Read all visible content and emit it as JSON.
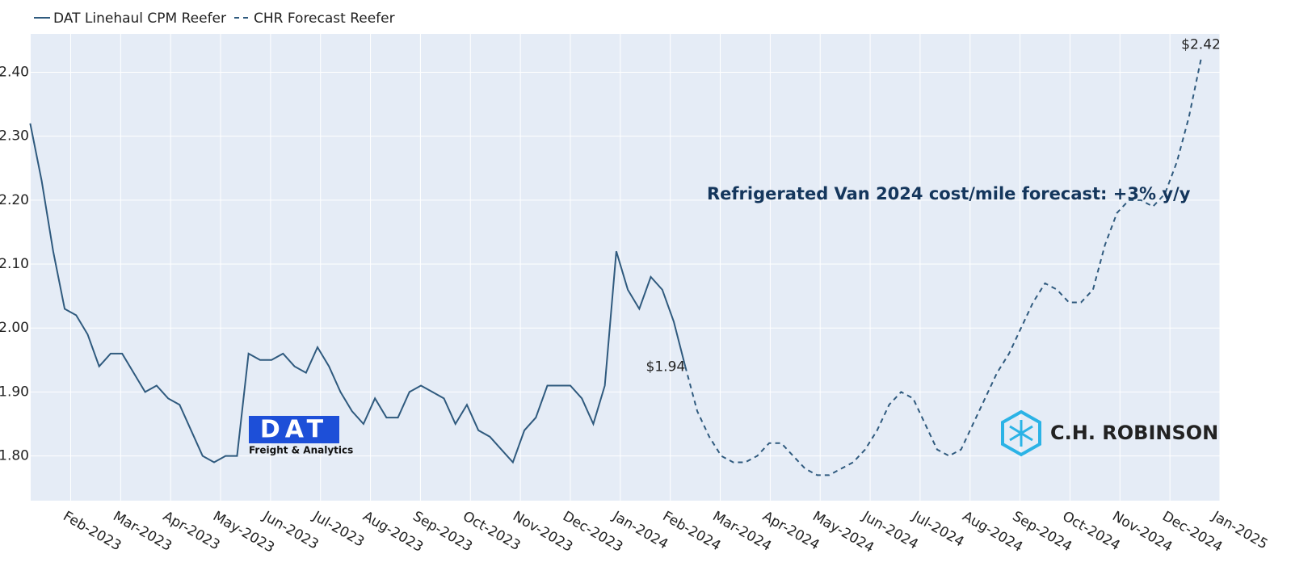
{
  "chart_data": {
    "type": "line",
    "annotation": "Refrigerated Van 2024 cost/mile forecast: +3% y/y",
    "logos": {
      "dat": {
        "name": "DAT",
        "tagline": "Freight & Analytics"
      },
      "chr": "C.H. ROBINSON"
    },
    "grid": true,
    "xlim": [
      0.2,
      24
    ],
    "xticks": [
      {
        "value": 1,
        "label": "Feb-2023"
      },
      {
        "value": 2,
        "label": "Mar-2023"
      },
      {
        "value": 3,
        "label": "Apr-2023"
      },
      {
        "value": 4,
        "label": "May-2023"
      },
      {
        "value": 5,
        "label": "Jun-2023"
      },
      {
        "value": 6,
        "label": "Jul-2023"
      },
      {
        "value": 7,
        "label": "Aug-2023"
      },
      {
        "value": 8,
        "label": "Sep-2023"
      },
      {
        "value": 9,
        "label": "Oct-2023"
      },
      {
        "value": 10,
        "label": "Nov-2023"
      },
      {
        "value": 11,
        "label": "Dec-2023"
      },
      {
        "value": 12,
        "label": "Jan-2024"
      },
      {
        "value": 13,
        "label": "Feb-2024"
      },
      {
        "value": 14,
        "label": "Mar-2024"
      },
      {
        "value": 15,
        "label": "Apr-2024"
      },
      {
        "value": 16,
        "label": "May-2024"
      },
      {
        "value": 17,
        "label": "Jun-2024"
      },
      {
        "value": 18,
        "label": "Jul-2024"
      },
      {
        "value": 19,
        "label": "Aug-2024"
      },
      {
        "value": 20,
        "label": "Sep-2024"
      },
      {
        "value": 21,
        "label": "Oct-2024"
      },
      {
        "value": 22,
        "label": "Nov-2024"
      },
      {
        "value": 23,
        "label": "Dec-2024"
      },
      {
        "value": 24,
        "label": "Jan-2025"
      }
    ],
    "ylim": [
      1.73,
      2.46
    ],
    "yticks": [
      {
        "value": 1.8,
        "label": "1.80"
      },
      {
        "value": 1.9,
        "label": "1.90"
      },
      {
        "value": 2.0,
        "label": "2.00"
      },
      {
        "value": 2.1,
        "label": "2.10"
      },
      {
        "value": 2.2,
        "label": "2.20"
      },
      {
        "value": 2.3,
        "label": "2.30"
      },
      {
        "value": 2.4,
        "label": "2.40"
      }
    ],
    "series": [
      {
        "name": "DAT Linehaul CPM Reefer",
        "color": "#2f5a7e",
        "dash": false,
        "x": [
          0.19,
          0.42,
          0.65,
          0.88,
          1.11,
          1.34,
          1.57,
          1.8,
          2.03,
          2.26,
          2.49,
          2.72,
          2.95,
          3.18,
          3.41,
          3.64,
          3.87,
          4.1,
          4.33,
          4.56,
          4.79,
          5.02,
          5.25,
          5.48,
          5.71,
          5.94,
          6.17,
          6.4,
          6.63,
          6.86,
          7.09,
          7.32,
          7.55,
          7.78,
          8.01,
          8.24,
          8.47,
          8.7,
          8.93,
          9.16,
          9.39,
          9.62,
          9.85,
          10.08,
          10.31,
          10.54,
          10.77,
          11.0,
          11.23,
          11.46,
          11.69,
          11.92,
          12.15,
          12.38,
          12.61,
          12.84,
          13.07,
          13.3
        ],
        "values": [
          2.32,
          2.23,
          2.12,
          2.03,
          2.02,
          1.99,
          1.94,
          1.96,
          1.96,
          1.93,
          1.9,
          1.91,
          1.89,
          1.88,
          1.84,
          1.8,
          1.79,
          1.8,
          1.8,
          1.96,
          1.95,
          1.95,
          1.96,
          1.94,
          1.93,
          1.97,
          1.94,
          1.9,
          1.87,
          1.85,
          1.89,
          1.86,
          1.86,
          1.9,
          1.91,
          1.9,
          1.89,
          1.85,
          1.88,
          1.84,
          1.83,
          1.81,
          1.79,
          1.84,
          1.86,
          1.91,
          1.91,
          1.91,
          1.89,
          1.85,
          1.91,
          2.12,
          2.06,
          2.03,
          2.08,
          2.06,
          2.01,
          1.94
        ],
        "value_labels": [
          null,
          null,
          null,
          null,
          null,
          null,
          null,
          null,
          null,
          null,
          null,
          null,
          null,
          null,
          null,
          null,
          null,
          null,
          null,
          null,
          null,
          null,
          null,
          null,
          null,
          null,
          null,
          null,
          null,
          null,
          null,
          null,
          null,
          null,
          null,
          null,
          null,
          null,
          null,
          null,
          null,
          null,
          null,
          null,
          null,
          null,
          null,
          null,
          null,
          null,
          null,
          null,
          null,
          null,
          null,
          null,
          null,
          "$1.94"
        ]
      },
      {
        "name": "CHR Forecast Reefer",
        "color": "#2f5a7e",
        "dash": true,
        "x": [
          13.3,
          13.54,
          13.78,
          14.02,
          14.26,
          14.5,
          14.74,
          14.98,
          15.22,
          15.46,
          15.7,
          15.94,
          16.18,
          16.42,
          16.66,
          16.9,
          17.14,
          17.38,
          17.62,
          17.86,
          18.1,
          18.34,
          18.58,
          18.82,
          19.06,
          19.3,
          19.54,
          19.78,
          20.02,
          20.26,
          20.5,
          20.74,
          20.98,
          21.22,
          21.46,
          21.7,
          21.94,
          22.18,
          22.42,
          22.66,
          22.9,
          23.14,
          23.38,
          23.62
        ],
        "values": [
          1.94,
          1.87,
          1.83,
          1.8,
          1.79,
          1.79,
          1.8,
          1.82,
          1.82,
          1.8,
          1.78,
          1.77,
          1.77,
          1.78,
          1.79,
          1.81,
          1.84,
          1.88,
          1.9,
          1.89,
          1.85,
          1.81,
          1.8,
          1.81,
          1.85,
          1.89,
          1.93,
          1.96,
          2.0,
          2.04,
          2.07,
          2.06,
          2.04,
          2.04,
          2.06,
          2.13,
          2.18,
          2.2,
          2.2,
          2.19,
          2.21,
          2.26,
          2.33,
          2.42
        ],
        "value_labels": [
          null,
          null,
          null,
          null,
          null,
          null,
          null,
          null,
          null,
          null,
          null,
          null,
          null,
          null,
          null,
          null,
          null,
          null,
          null,
          null,
          null,
          null,
          null,
          null,
          null,
          null,
          null,
          null,
          null,
          null,
          null,
          null,
          null,
          null,
          null,
          null,
          null,
          null,
          null,
          null,
          null,
          null,
          null,
          "$2.42"
        ]
      }
    ]
  }
}
